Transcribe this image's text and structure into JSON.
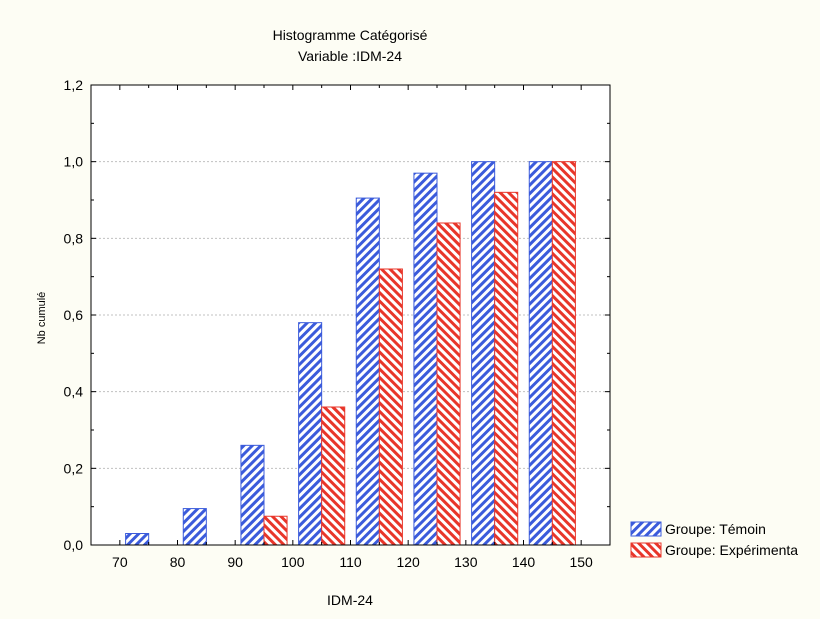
{
  "chart_data": {
    "type": "bar",
    "title": "Histogramme Catégorisé",
    "subtitle": "Variable :IDM-24",
    "xlabel": "IDM-24",
    "ylabel": "Nb cumulé",
    "x_ticks": [
      "70",
      "80",
      "90",
      "100",
      "110",
      "120",
      "130",
      "140",
      "150"
    ],
    "bin_edges": [
      70,
      80,
      90,
      100,
      110,
      120,
      130,
      140,
      150
    ],
    "ylim": [
      0,
      1.2
    ],
    "y_ticks": [
      "0,0",
      "0,2",
      "0,4",
      "0,6",
      "0,8",
      "1,0",
      "1,2"
    ],
    "grid": true,
    "legend_position": "bottom-right",
    "series": [
      {
        "name": "Groupe: Témoin",
        "values": [
          0.03,
          0.095,
          0.26,
          0.58,
          0.905,
          0.97,
          1.0,
          1.0
        ],
        "color": "#3b5bdb"
      },
      {
        "name": "Groupe: Expérimenta",
        "values": [
          0,
          0,
          0.075,
          0.36,
          0.72,
          0.84,
          0.92,
          1.0
        ],
        "color": "#e8362a"
      }
    ]
  }
}
